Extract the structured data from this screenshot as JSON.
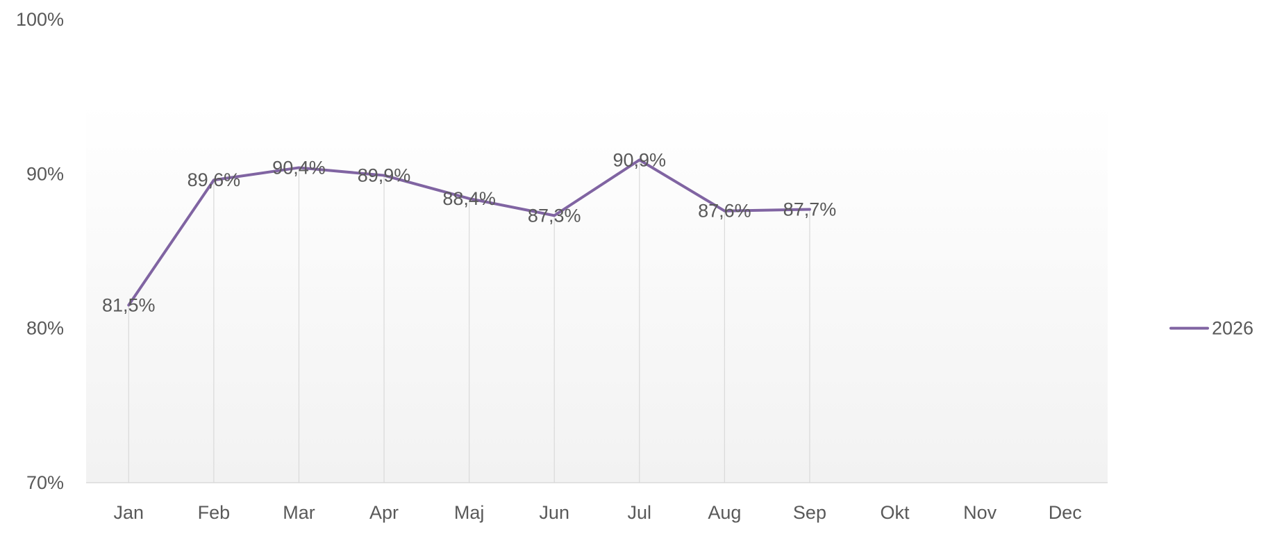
{
  "chart_data": {
    "type": "line",
    "categories": [
      "Jan",
      "Feb",
      "Mar",
      "Apr",
      "Maj",
      "Jun",
      "Jul",
      "Aug",
      "Sep",
      "Okt",
      "Nov",
      "Dec"
    ],
    "series": [
      {
        "name": "2026",
        "values": [
          81.5,
          89.6,
          90.4,
          89.9,
          88.4,
          87.3,
          90.9,
          87.6,
          87.7,
          null,
          null,
          null
        ],
        "value_labels": [
          "81,5%",
          "89,6%",
          "90,4%",
          "89,9%",
          "88,4%",
          "87,3%",
          "90,9%",
          "87,6%",
          "87,7%",
          "",
          "",
          ""
        ],
        "color": "#8064A2"
      }
    ],
    "ylim": [
      70,
      100
    ],
    "y_ticks": [
      70,
      80,
      90,
      100
    ],
    "y_tick_labels": [
      "70%",
      "80%",
      "90%",
      "100%"
    ],
    "title": "",
    "xlabel": "",
    "ylabel": "",
    "grid": false,
    "drop_lines": true,
    "legend_position": "right",
    "colors": {
      "line": "#8064A2",
      "text": "#595959",
      "axis": "#D9D9D9",
      "drop_line": "#D9D9D9",
      "plot_bg_top": "#FFFFFF",
      "plot_bg_bottom": "#F2F2F2"
    }
  }
}
